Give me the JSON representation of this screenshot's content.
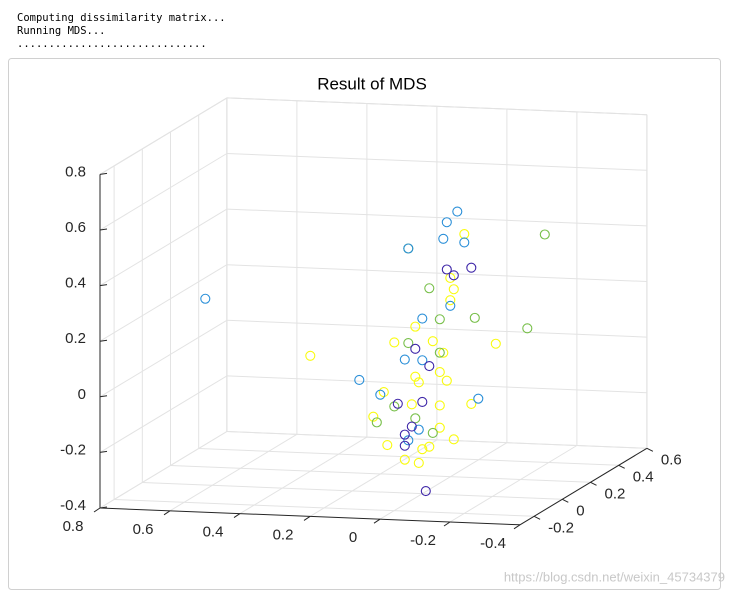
{
  "console": [
    "Computing dissimilarity matrix...",
    "Running MDS...",
    ".............................."
  ],
  "watermark": "https://blog.csdn.net/weixin_45734379",
  "chart_data": {
    "type": "scatter3d",
    "title": "Result of MDS",
    "xlim": [
      -0.4,
      0.8
    ],
    "ylim": [
      -0.3,
      0.6
    ],
    "zlim": [
      -0.4,
      0.8
    ],
    "xticks": [
      -0.4,
      -0.2,
      0,
      0.2,
      0.4,
      0.6,
      0.8
    ],
    "yticks": [
      -0.2,
      0,
      0.2,
      0.4,
      0.6
    ],
    "zticks": [
      -0.4,
      -0.2,
      0,
      0.2,
      0.4,
      0.6,
      0.8
    ],
    "grid": true,
    "series": [
      {
        "color": "#f9fb0e",
        "x": [
          0.32,
          -0.12,
          -0.08,
          -0.09,
          -0.08,
          -0.21,
          0.08,
          -0.03,
          -0.06,
          -0.05,
          0.11,
          0.01,
          -0.14,
          -0.05,
          0.14,
          0.1,
          -0.09,
          0,
          0.03,
          -0.07,
          0.02,
          -0.02,
          0.05,
          -0.05,
          0.01,
          0.02
        ],
        "y": [
          0,
          0,
          0,
          0,
          0,
          0,
          0,
          0,
          0,
          0,
          0,
          0,
          0,
          0,
          0,
          0,
          0,
          0,
          0,
          0,
          0,
          0,
          0,
          0,
          0,
          0
        ],
        "z": [
          0.08,
          0.54,
          0.38,
          0.34,
          0.3,
          0.15,
          0.14,
          0.15,
          0.11,
          0.04,
          -0.04,
          0,
          -0.07,
          -0.08,
          -0.13,
          -0.23,
          -0.2,
          -0.24,
          -0.08,
          0.01,
          0.02,
          -0.23,
          -0.28,
          -0.16,
          -0.29,
          0.2
        ]
      },
      {
        "color": "#77bf49",
        "x": [
          -0.35,
          0.04,
          -0.02,
          -0.15,
          -0.3,
          -0.05,
          0.04,
          -0.05,
          0.13,
          -0.03,
          0.02,
          0.08
        ],
        "y": [
          0,
          0,
          0,
          0,
          0,
          0,
          0,
          0,
          0,
          0,
          0,
          0
        ],
        "z": [
          0.55,
          0.48,
          0.34,
          0.24,
          0.21,
          0.23,
          0.14,
          0.11,
          -0.15,
          -0.18,
          -0.13,
          -0.09
        ]
      },
      {
        "color": "#2a8fd8",
        "x": [
          0.62,
          0.18,
          -0.1,
          -0.07,
          -0.06,
          -0.12,
          0.04,
          -0.08,
          0,
          0.05,
          0,
          0.12,
          -0.16,
          0.04,
          0.01
        ],
        "y": [
          0,
          0,
          0,
          0,
          0,
          0,
          0,
          0,
          0,
          0,
          0,
          0,
          0,
          0,
          0
        ],
        "z": [
          0.27,
          0,
          0.62,
          0.58,
          0.52,
          0.51,
          0.48,
          0.28,
          0.23,
          0.08,
          0.08,
          -0.05,
          -0.05,
          -0.21,
          -0.17
        ]
      },
      {
        "color": "#3e26a8",
        "x": [
          -0.14,
          -0.07,
          -0.09,
          0.02,
          -0.02,
          0.07,
          0,
          0.05,
          -0.01,
          0.03,
          0.05
        ],
        "y": [
          0,
          0,
          0,
          0,
          0,
          0,
          0,
          0,
          0,
          0,
          0
        ],
        "z": [
          0.42,
          0.41,
          0.39,
          0.12,
          0.06,
          -0.08,
          -0.07,
          -0.19,
          -0.39,
          -0.16,
          -0.23
        ]
      }
    ]
  }
}
